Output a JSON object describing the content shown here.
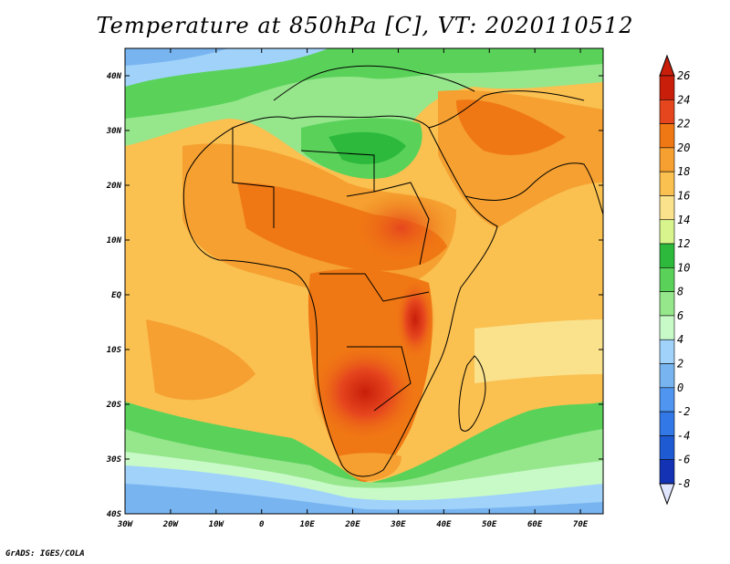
{
  "title": "Temperature at 850hPa [C], VT: 2020110512",
  "footer": "GrADS: IGES/COLA",
  "map": {
    "lon_range": [
      -30,
      75
    ],
    "lat_range": [
      -40,
      45
    ],
    "lon_ticks": [
      {
        "value": -30,
        "label": "30W"
      },
      {
        "value": -20,
        "label": "20W"
      },
      {
        "value": -10,
        "label": "10W"
      },
      {
        "value": 0,
        "label": "0"
      },
      {
        "value": 10,
        "label": "10E"
      },
      {
        "value": 20,
        "label": "20E"
      },
      {
        "value": 30,
        "label": "30E"
      },
      {
        "value": 40,
        "label": "40E"
      },
      {
        "value": 50,
        "label": "50E"
      },
      {
        "value": 60,
        "label": "60E"
      },
      {
        "value": 70,
        "label": "70E"
      }
    ],
    "lat_ticks": [
      {
        "value": 40,
        "label": "40N"
      },
      {
        "value": 30,
        "label": "30N"
      },
      {
        "value": 20,
        "label": "20N"
      },
      {
        "value": 10,
        "label": "10N"
      },
      {
        "value": 0,
        "label": "EQ"
      },
      {
        "value": -10,
        "label": "10S"
      },
      {
        "value": -20,
        "label": "20S"
      },
      {
        "value": -30,
        "label": "30S"
      },
      {
        "value": -40,
        "label": "40S"
      }
    ]
  },
  "colorbar": {
    "levels": [
      "26",
      "24",
      "22",
      "20",
      "18",
      "16",
      "14",
      "12",
      "10",
      "8",
      "6",
      "4",
      "2",
      "0",
      "-2",
      "-4",
      "-6",
      "-8"
    ],
    "colors": [
      "#c81e0a",
      "#e6461e",
      "#f07814",
      "#f5a030",
      "#fac050",
      "#fae18c",
      "#d7f58c",
      "#2db93c",
      "#5ad25a",
      "#96e68c",
      "#c8fac8",
      "#a0d2fa",
      "#78b4f0",
      "#5096f0",
      "#3278e6",
      "#1e5ad2",
      "#1432b4",
      "#0a148c"
    ],
    "top_color": "#c81e0a",
    "bottom_color": "#e1e6ff"
  }
}
